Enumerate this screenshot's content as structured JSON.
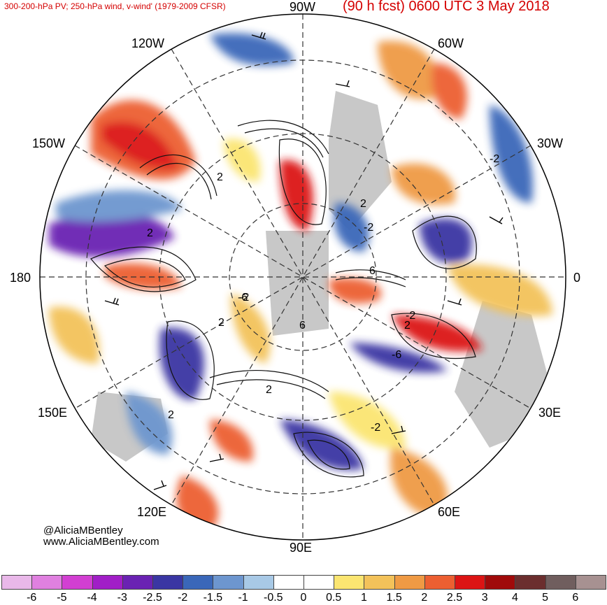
{
  "header": {
    "left_title": "300-200-hPa PV; 250-hPa wind, v-wind' (1979-2009 CFSR)",
    "right_title": "(90 h fcst) 0600 UTC 3 May 2018"
  },
  "map": {
    "projection": "north-polar-stereographic",
    "longitude_labels": [
      "90W",
      "60W",
      "30W",
      "0",
      "30E",
      "60E",
      "90E",
      "120E",
      "150E",
      "180",
      "150W",
      "120W"
    ],
    "features": [
      "pv-anomaly-shading",
      "pv-contours",
      "wind-barbs",
      "coastlines",
      "lat-lon-grid"
    ],
    "contour_labels": [
      "2",
      "2",
      "2",
      "2",
      "2",
      "2",
      "2",
      "-2",
      "-2",
      "-2",
      "-2",
      "-6",
      "-6",
      "6",
      "6",
      "-2"
    ]
  },
  "credits": {
    "handle": "@AliciaMBentley",
    "website": "www.AliciaMBentley.com"
  },
  "colorbar": {
    "colors": [
      "#e9b8e9",
      "#e080e0",
      "#d23fd2",
      "#a11ec7",
      "#6a22b3",
      "#3a36a3",
      "#3a67b9",
      "#6d96cf",
      "#a8c9e6",
      "#ffffff",
      "#ffffff",
      "#fbe571",
      "#f3c25a",
      "#ef9a44",
      "#ec5f31",
      "#dc1414",
      "#a00a0a",
      "#6b2e2e",
      "#705e5e",
      "#a79191"
    ],
    "tick_labels": [
      "-6",
      "-5",
      "-4",
      "-3",
      "-2.5",
      "-2",
      "-1.5",
      "-1",
      "-0.5",
      "0",
      "0.5",
      "1",
      "1.5",
      "2",
      "2.5",
      "3",
      "4",
      "5",
      "6"
    ]
  }
}
